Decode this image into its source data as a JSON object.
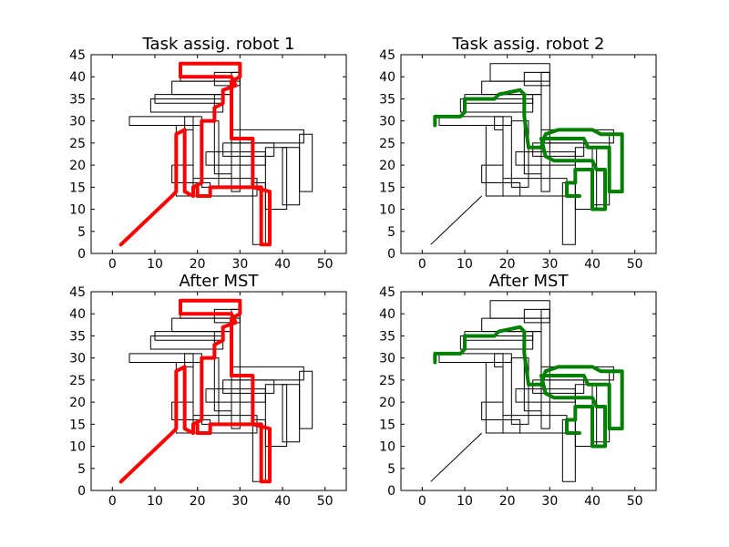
{
  "figure": {
    "background": "#ffffff"
  },
  "chart_data": [
    {
      "type": "line",
      "title": "Task assig. robot 1",
      "xlim": [
        -5,
        55
      ],
      "ylim": [
        0,
        45
      ],
      "xticks": [
        0,
        10,
        20,
        30,
        40,
        50
      ],
      "yticks": [
        0,
        5,
        10,
        15,
        20,
        25,
        30,
        35,
        40,
        45
      ],
      "map_color": "#000000",
      "route_color": "#ff0000",
      "route": [
        [
          2,
          2
        ],
        [
          14,
          13
        ],
        [
          15,
          14
        ],
        [
          15,
          27
        ],
        [
          17,
          28
        ],
        [
          17,
          14
        ],
        [
          19,
          13
        ],
        [
          19,
          15
        ],
        [
          21,
          16
        ],
        [
          21,
          30
        ],
        [
          24,
          30
        ],
        [
          24,
          33
        ],
        [
          26,
          34
        ],
        [
          26,
          37
        ],
        [
          29,
          38
        ],
        [
          28,
          40
        ],
        [
          16,
          40
        ],
        [
          16,
          43
        ],
        [
          30,
          43
        ],
        [
          30,
          40
        ],
        [
          28,
          39
        ],
        [
          28,
          26
        ],
        [
          33,
          26
        ],
        [
          33,
          15
        ],
        [
          35,
          15
        ],
        [
          35,
          2
        ],
        [
          37,
          2
        ],
        [
          37,
          14
        ],
        [
          33,
          15
        ],
        [
          23,
          15
        ],
        [
          23,
          13
        ],
        [
          20,
          13
        ],
        [
          20,
          15
        ]
      ]
    },
    {
      "type": "line",
      "title": "Task assig. robot 2",
      "xlim": [
        -5,
        55
      ],
      "ylim": [
        0,
        45
      ],
      "xticks": [
        0,
        10,
        20,
        30,
        40,
        50
      ],
      "yticks": [
        0,
        5,
        10,
        15,
        20,
        25,
        30,
        35,
        40,
        45
      ],
      "map_color": "#000000",
      "route_color": "#008000",
      "route": [
        [
          3,
          29
        ],
        [
          3,
          31
        ],
        [
          9,
          31
        ],
        [
          10,
          32
        ],
        [
          10,
          35
        ],
        [
          17,
          35
        ],
        [
          18,
          36
        ],
        [
          23,
          37
        ],
        [
          24,
          36
        ],
        [
          24,
          31
        ],
        [
          25,
          24
        ],
        [
          28,
          24
        ],
        [
          29,
          27
        ],
        [
          32,
          28
        ],
        [
          40,
          28
        ],
        [
          42,
          27
        ],
        [
          47,
          27
        ],
        [
          47,
          14
        ],
        [
          44,
          14
        ],
        [
          44,
          24
        ],
        [
          39,
          24
        ],
        [
          38,
          26
        ],
        [
          32,
          26
        ],
        [
          28,
          26
        ],
        [
          29,
          22
        ],
        [
          31,
          21
        ],
        [
          40,
          21
        ],
        [
          41,
          19
        ],
        [
          43,
          19
        ],
        [
          43,
          10
        ],
        [
          40,
          10
        ],
        [
          40,
          19
        ],
        [
          36,
          19
        ],
        [
          36,
          16
        ],
        [
          34,
          16
        ],
        [
          34,
          13
        ],
        [
          37,
          13
        ]
      ]
    },
    {
      "type": "line",
      "title": "After MST",
      "xlim": [
        -5,
        55
      ],
      "ylim": [
        0,
        45
      ],
      "xticks": [
        0,
        10,
        20,
        30,
        40,
        50
      ],
      "yticks": [
        0,
        5,
        10,
        15,
        20,
        25,
        30,
        35,
        40,
        45
      ],
      "map_color": "#000000",
      "route_color": "#ff0000",
      "route": [
        [
          2,
          2
        ],
        [
          14,
          13
        ],
        [
          15,
          14
        ],
        [
          15,
          27
        ],
        [
          17,
          28
        ],
        [
          17,
          14
        ],
        [
          19,
          13
        ],
        [
          19,
          15
        ],
        [
          21,
          16
        ],
        [
          21,
          30
        ],
        [
          24,
          30
        ],
        [
          24,
          33
        ],
        [
          26,
          34
        ],
        [
          26,
          37
        ],
        [
          29,
          38
        ],
        [
          28,
          40
        ],
        [
          16,
          40
        ],
        [
          16,
          43
        ],
        [
          30,
          43
        ],
        [
          30,
          40
        ],
        [
          28,
          39
        ],
        [
          28,
          26
        ],
        [
          33,
          26
        ],
        [
          33,
          15
        ],
        [
          35,
          15
        ],
        [
          35,
          2
        ],
        [
          37,
          2
        ],
        [
          37,
          14
        ],
        [
          33,
          15
        ],
        [
          23,
          15
        ],
        [
          23,
          13
        ],
        [
          20,
          13
        ],
        [
          20,
          15
        ]
      ]
    },
    {
      "type": "line",
      "title": "After MST",
      "xlim": [
        -5,
        55
      ],
      "ylim": [
        0,
        45
      ],
      "xticks": [
        0,
        10,
        20,
        30,
        40,
        50
      ],
      "yticks": [
        0,
        5,
        10,
        15,
        20,
        25,
        30,
        35,
        40,
        45
      ],
      "map_color": "#000000",
      "route_color": "#008000",
      "route": [
        [
          3,
          29
        ],
        [
          3,
          31
        ],
        [
          9,
          31
        ],
        [
          10,
          32
        ],
        [
          10,
          35
        ],
        [
          17,
          35
        ],
        [
          18,
          36
        ],
        [
          23,
          37
        ],
        [
          24,
          36
        ],
        [
          24,
          31
        ],
        [
          25,
          24
        ],
        [
          28,
          24
        ],
        [
          29,
          27
        ],
        [
          32,
          28
        ],
        [
          40,
          28
        ],
        [
          42,
          27
        ],
        [
          47,
          27
        ],
        [
          47,
          14
        ],
        [
          44,
          14
        ],
        [
          44,
          24
        ],
        [
          39,
          24
        ],
        [
          38,
          26
        ],
        [
          32,
          26
        ],
        [
          28,
          26
        ],
        [
          29,
          22
        ],
        [
          31,
          21
        ],
        [
          40,
          21
        ],
        [
          41,
          19
        ],
        [
          43,
          19
        ],
        [
          43,
          10
        ],
        [
          40,
          10
        ],
        [
          40,
          19
        ],
        [
          36,
          19
        ],
        [
          36,
          16
        ],
        [
          34,
          16
        ],
        [
          34,
          13
        ],
        [
          37,
          13
        ]
      ]
    }
  ],
  "corridor_map": {
    "spanning_line": [
      [
        2,
        2
      ],
      [
        14,
        13
      ]
    ],
    "closed_shapes": [
      [
        [
          15,
          13
        ],
        [
          34,
          13
        ],
        [
          34,
          17
        ],
        [
          19,
          17
        ],
        [
          19,
          29
        ],
        [
          15,
          29
        ]
      ],
      [
        [
          19,
          13
        ],
        [
          23,
          13
        ],
        [
          23,
          16
        ],
        [
          19,
          16
        ]
      ],
      [
        [
          17,
          28
        ],
        [
          19,
          28
        ],
        [
          19,
          31
        ],
        [
          17,
          31
        ]
      ],
      [
        [
          4,
          29
        ],
        [
          21,
          29
        ],
        [
          21,
          31
        ],
        [
          4,
          31
        ]
      ],
      [
        [
          9,
          32
        ],
        [
          26,
          32
        ],
        [
          26,
          35
        ],
        [
          9,
          35
        ]
      ],
      [
        [
          10,
          34
        ],
        [
          26,
          34
        ],
        [
          26,
          36
        ],
        [
          10,
          36
        ]
      ],
      [
        [
          14,
          36
        ],
        [
          28,
          36
        ],
        [
          28,
          39
        ],
        [
          14,
          39
        ]
      ],
      [
        [
          16,
          39
        ],
        [
          30,
          39
        ],
        [
          30,
          43
        ],
        [
          16,
          43
        ]
      ],
      [
        [
          24,
          38
        ],
        [
          30,
          38
        ],
        [
          30,
          41
        ],
        [
          24,
          41
        ]
      ],
      [
        [
          21,
          15
        ],
        [
          25,
          15
        ],
        [
          25,
          30
        ],
        [
          21,
          30
        ]
      ],
      [
        [
          24,
          18
        ],
        [
          28,
          18
        ],
        [
          28,
          36
        ],
        [
          24,
          36
        ]
      ],
      [
        [
          28,
          14
        ],
        [
          30,
          14
        ],
        [
          30,
          41
        ],
        [
          28,
          41
        ]
      ],
      [
        [
          22,
          20
        ],
        [
          36,
          20
        ],
        [
          36,
          23
        ],
        [
          22,
          23
        ]
      ],
      [
        [
          26,
          22
        ],
        [
          38,
          22
        ],
        [
          38,
          25
        ],
        [
          26,
          25
        ]
      ],
      [
        [
          28,
          25
        ],
        [
          45,
          25
        ],
        [
          45,
          28
        ],
        [
          28,
          28
        ]
      ],
      [
        [
          33,
          2
        ],
        [
          36,
          2
        ],
        [
          36,
          16
        ],
        [
          33,
          16
        ]
      ],
      [
        [
          36,
          10
        ],
        [
          41,
          10
        ],
        [
          41,
          24
        ],
        [
          36,
          24
        ]
      ],
      [
        [
          40,
          11
        ],
        [
          44,
          11
        ],
        [
          44,
          24
        ],
        [
          40,
          24
        ]
      ],
      [
        [
          44,
          14
        ],
        [
          47,
          14
        ],
        [
          47,
          27
        ],
        [
          44,
          27
        ]
      ],
      [
        [
          14,
          16
        ],
        [
          19,
          16
        ],
        [
          19,
          20
        ],
        [
          14,
          20
        ]
      ]
    ]
  }
}
